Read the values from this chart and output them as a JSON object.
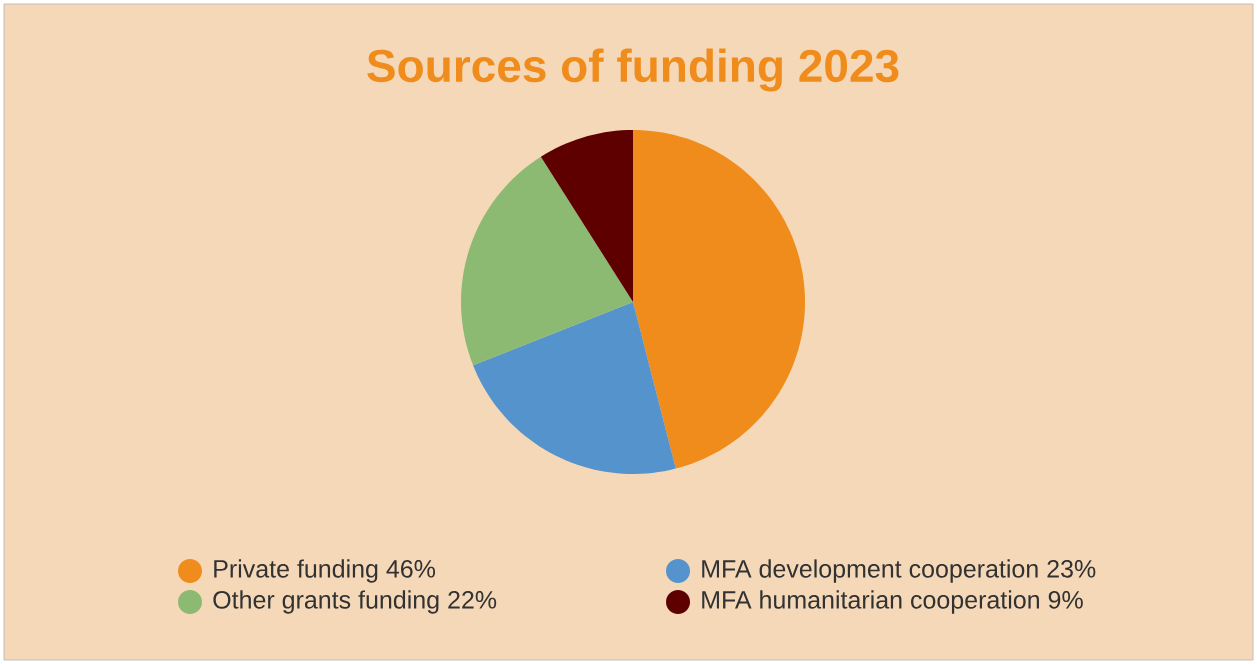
{
  "chart_data": {
    "type": "pie",
    "title": "Sources of funding 2023",
    "categories": [
      "Private funding 46%",
      "MFA development cooperation 23%",
      "Other grants funding 22%",
      "MFA humanitarian cooperation 9%"
    ],
    "values": [
      46,
      23,
      22,
      9
    ],
    "colors": [
      "#f08c1c",
      "#5593cd",
      "#8cba72",
      "#5e0000"
    ],
    "legend": "bottom"
  }
}
